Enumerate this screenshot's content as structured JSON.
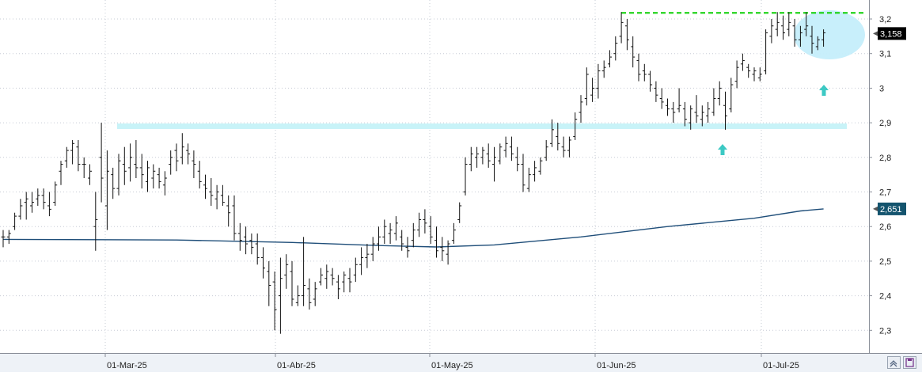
{
  "chart_data": {
    "type": "ohlc",
    "x_ticks": [
      "01-Mar-25",
      "01-Abr-25",
      "01-May-25",
      "01-Jun-25",
      "01-Jul-25"
    ],
    "y_ticks": [
      "2,3",
      "2,4",
      "2,5",
      "2,6",
      "2,7",
      "2,8",
      "2,9",
      "3",
      "3,1",
      "3,2"
    ],
    "ylim": [
      2.26,
      3.24
    ],
    "grid": true,
    "series": [
      {
        "bars": [
          [
            2.57,
            2.59,
            2.54,
            2.57
          ],
          [
            2.57,
            2.59,
            2.55,
            2.58
          ],
          [
            2.6,
            2.64,
            2.59,
            2.63
          ],
          [
            2.63,
            2.68,
            2.62,
            2.66
          ],
          [
            2.67,
            2.7,
            2.62,
            2.68
          ],
          [
            2.66,
            2.7,
            2.64,
            2.67
          ],
          [
            2.68,
            2.71,
            2.66,
            2.69
          ],
          [
            2.69,
            2.71,
            2.65,
            2.67
          ],
          [
            2.66,
            2.7,
            2.63,
            2.65
          ],
          [
            2.67,
            2.73,
            2.66,
            2.72
          ],
          [
            2.76,
            2.79,
            2.72,
            2.78
          ],
          [
            2.79,
            2.83,
            2.77,
            2.82
          ],
          [
            2.82,
            2.85,
            2.78,
            2.84
          ],
          [
            2.83,
            2.85,
            2.76,
            2.78
          ],
          [
            2.78,
            2.8,
            2.74,
            2.78
          ],
          [
            2.74,
            2.78,
            2.72,
            2.76
          ],
          [
            2.6,
            2.7,
            2.53,
            2.62
          ],
          [
            2.8,
            2.9,
            2.67,
            2.74
          ],
          [
            2.66,
            2.82,
            2.59,
            2.76
          ],
          [
            2.75,
            2.77,
            2.68,
            2.71
          ],
          [
            2.71,
            2.81,
            2.69,
            2.79
          ],
          [
            2.78,
            2.83,
            2.72,
            2.76
          ],
          [
            2.77,
            2.84,
            2.73,
            2.8
          ],
          [
            2.78,
            2.85,
            2.74,
            2.77
          ],
          [
            2.77,
            2.81,
            2.71,
            2.75
          ],
          [
            2.73,
            2.79,
            2.7,
            2.77
          ],
          [
            2.74,
            2.78,
            2.71,
            2.76
          ],
          [
            2.75,
            2.77,
            2.71,
            2.73
          ],
          [
            2.72,
            2.76,
            2.69,
            2.74
          ],
          [
            2.78,
            2.82,
            2.75,
            2.8
          ],
          [
            2.82,
            2.84,
            2.76,
            2.79
          ],
          [
            2.8,
            2.87,
            2.78,
            2.83
          ],
          [
            2.82,
            2.84,
            2.78,
            2.81
          ],
          [
            2.79,
            2.82,
            2.74,
            2.78
          ],
          [
            2.76,
            2.79,
            2.71,
            2.73
          ],
          [
            2.72,
            2.75,
            2.68,
            2.71
          ],
          [
            2.7,
            2.74,
            2.66,
            2.69
          ],
          [
            2.68,
            2.72,
            2.65,
            2.7
          ],
          [
            2.69,
            2.72,
            2.66,
            2.67
          ],
          [
            2.66,
            2.69,
            2.6,
            2.64
          ],
          [
            2.66,
            2.69,
            2.56,
            2.58
          ],
          [
            2.58,
            2.61,
            2.53,
            2.56
          ],
          [
            2.57,
            2.6,
            2.52,
            2.55
          ],
          [
            2.56,
            2.58,
            2.52,
            2.54
          ],
          [
            2.55,
            2.58,
            2.49,
            2.51
          ],
          [
            2.51,
            2.54,
            2.45,
            2.48
          ],
          [
            2.47,
            2.5,
            2.37,
            2.43
          ],
          [
            2.44,
            2.47,
            2.3,
            2.36
          ],
          [
            2.4,
            2.51,
            2.29,
            2.45
          ],
          [
            2.46,
            2.52,
            2.42,
            2.49
          ],
          [
            2.47,
            2.5,
            2.37,
            2.39
          ],
          [
            2.38,
            2.43,
            2.37,
            2.4
          ],
          [
            2.4,
            2.57,
            2.37,
            2.43
          ],
          [
            2.42,
            2.45,
            2.36,
            2.38
          ],
          [
            2.39,
            2.44,
            2.37,
            2.42
          ],
          [
            2.44,
            2.48,
            2.43,
            2.46
          ],
          [
            2.45,
            2.49,
            2.42,
            2.47
          ],
          [
            2.46,
            2.48,
            2.43,
            2.45
          ],
          [
            2.44,
            2.46,
            2.39,
            2.42
          ],
          [
            2.44,
            2.47,
            2.41,
            2.46
          ],
          [
            2.45,
            2.48,
            2.41,
            2.44
          ],
          [
            2.46,
            2.51,
            2.44,
            2.49
          ],
          [
            2.49,
            2.54,
            2.46,
            2.51
          ],
          [
            2.51,
            2.55,
            2.48,
            2.52
          ],
          [
            2.52,
            2.57,
            2.5,
            2.55
          ],
          [
            2.55,
            2.6,
            2.53,
            2.57
          ],
          [
            2.57,
            2.62,
            2.55,
            2.6
          ],
          [
            2.58,
            2.61,
            2.55,
            2.59
          ],
          [
            2.58,
            2.63,
            2.56,
            2.61
          ],
          [
            2.57,
            2.59,
            2.53,
            2.55
          ],
          [
            2.54,
            2.57,
            2.51,
            2.53
          ],
          [
            2.56,
            2.61,
            2.54,
            2.59
          ],
          [
            2.59,
            2.64,
            2.57,
            2.62
          ],
          [
            2.62,
            2.65,
            2.58,
            2.61
          ],
          [
            2.6,
            2.63,
            2.55,
            2.57
          ],
          [
            2.56,
            2.6,
            2.51,
            2.53
          ],
          [
            2.54,
            2.57,
            2.5,
            2.53
          ],
          [
            2.52,
            2.56,
            2.49,
            2.55
          ],
          [
            2.56,
            2.61,
            2.55,
            2.59
          ],
          [
            2.62,
            2.67,
            2.61,
            2.66
          ],
          [
            2.7,
            2.8,
            2.69,
            2.78
          ],
          [
            2.78,
            2.83,
            2.76,
            2.81
          ],
          [
            2.8,
            2.83,
            2.77,
            2.81
          ],
          [
            2.8,
            2.83,
            2.78,
            2.82
          ],
          [
            2.81,
            2.84,
            2.77,
            2.79
          ],
          [
            2.78,
            2.83,
            2.73,
            2.8
          ],
          [
            2.79,
            2.84,
            2.78,
            2.83
          ],
          [
            2.82,
            2.86,
            2.8,
            2.84
          ],
          [
            2.83,
            2.86,
            2.79,
            2.81
          ],
          [
            2.8,
            2.83,
            2.76,
            2.78
          ],
          [
            2.78,
            2.81,
            2.7,
            2.72
          ],
          [
            2.71,
            2.77,
            2.7,
            2.75
          ],
          [
            2.75,
            2.79,
            2.73,
            2.77
          ],
          [
            2.76,
            2.8,
            2.75,
            2.79
          ],
          [
            2.8,
            2.85,
            2.79,
            2.83
          ],
          [
            2.84,
            2.91,
            2.83,
            2.88
          ],
          [
            2.86,
            2.9,
            2.82,
            2.84
          ],
          [
            2.83,
            2.86,
            2.8,
            2.82
          ],
          [
            2.82,
            2.86,
            2.8,
            2.85
          ],
          [
            2.86,
            2.93,
            2.85,
            2.91
          ],
          [
            2.93,
            2.98,
            2.9,
            2.96
          ],
          [
            2.97,
            3.06,
            2.95,
            3.04
          ],
          [
            2.98,
            3.03,
            2.96,
            3.0
          ],
          [
            3.0,
            3.07,
            2.97,
            3.05
          ],
          [
            3.05,
            3.08,
            3.03,
            3.06
          ],
          [
            3.07,
            3.11,
            3.06,
            3.09
          ],
          [
            3.1,
            3.15,
            3.08,
            3.13
          ],
          [
            3.15,
            3.22,
            3.13,
            3.19
          ],
          [
            3.18,
            3.2,
            3.11,
            3.14
          ],
          [
            3.12,
            3.15,
            3.06,
            3.09
          ],
          [
            3.08,
            3.1,
            3.02,
            3.04
          ],
          [
            3.05,
            3.07,
            3.02,
            3.04
          ],
          [
            3.04,
            3.05,
            2.99,
            3.01
          ],
          [
            3.0,
            3.02,
            2.96,
            2.98
          ],
          [
            2.97,
            3.0,
            2.94,
            2.96
          ],
          [
            2.95,
            2.97,
            2.92,
            2.94
          ],
          [
            2.94,
            2.96,
            2.9,
            2.93
          ],
          [
            2.94,
            3.0,
            2.93,
            2.95
          ],
          [
            2.94,
            2.96,
            2.89,
            2.91
          ],
          [
            2.9,
            2.95,
            2.88,
            2.94
          ],
          [
            2.93,
            2.98,
            2.9,
            2.92
          ],
          [
            2.91,
            2.95,
            2.89,
            2.93
          ],
          [
            2.92,
            2.96,
            2.9,
            2.94
          ],
          [
            2.93,
            3.0,
            2.92,
            2.97
          ],
          [
            2.97,
            3.02,
            2.95,
            3.0
          ],
          [
            2.95,
            2.99,
            2.88,
            2.92
          ],
          [
            2.94,
            3.03,
            2.93,
            3.01
          ],
          [
            3.02,
            3.08,
            3.0,
            3.06
          ],
          [
            3.07,
            3.1,
            3.05,
            3.08
          ],
          [
            3.06,
            3.07,
            3.03,
            3.05
          ],
          [
            3.04,
            3.06,
            3.02,
            3.05
          ],
          [
            3.03,
            3.06,
            3.02,
            3.04
          ],
          [
            3.05,
            3.17,
            3.04,
            3.16
          ],
          [
            3.15,
            3.2,
            3.13,
            3.18
          ],
          [
            3.17,
            3.22,
            3.15,
            3.19
          ],
          [
            3.18,
            3.21,
            3.14,
            3.16
          ],
          [
            3.17,
            3.22,
            3.15,
            3.19
          ],
          [
            3.18,
            3.2,
            3.12,
            3.14
          ],
          [
            3.14,
            3.18,
            3.12,
            3.16
          ],
          [
            3.17,
            3.22,
            3.15,
            3.18
          ],
          [
            3.15,
            3.18,
            3.1,
            3.13
          ],
          [
            3.12,
            3.15,
            3.11,
            3.14
          ],
          [
            3.14,
            3.17,
            3.12,
            3.16
          ]
        ]
      },
      {
        "type": "line",
        "color": "#1f4e79",
        "points": [
          [
            0,
            2.563
          ],
          [
            30,
            2.561
          ],
          [
            50,
            2.554
          ],
          [
            65,
            2.545
          ],
          [
            75,
            2.541
          ],
          [
            85,
            2.547
          ],
          [
            100,
            2.57
          ],
          [
            115,
            2.6
          ],
          [
            130,
            2.624
          ],
          [
            138,
            2.645
          ],
          [
            142,
            2.651
          ]
        ]
      }
    ],
    "price_tags": [
      "3,158",
      "2,651"
    ],
    "resistance_level": 3.22,
    "support_level": 2.89
  },
  "ui": {
    "scroll_left_icon": "double-chevron-icon",
    "scroll_right_icon": "save-icon"
  }
}
